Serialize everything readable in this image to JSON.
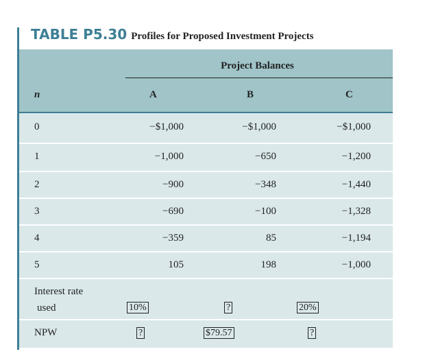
{
  "title": {
    "number": "TABLE P5.30",
    "description": "Profiles for Proposed Investment Projects"
  },
  "header": {
    "group": "Project Balances",
    "n": "n",
    "columns": [
      "A",
      "B",
      "C"
    ]
  },
  "rows": [
    {
      "n": "0",
      "a": "−$1,000",
      "b": "−$1,000",
      "c": "−$1,000"
    },
    {
      "n": "1",
      "a": "−1,000",
      "b": "−650",
      "c": "−1,200"
    },
    {
      "n": "2",
      "a": "−900",
      "b": "−348",
      "c": "−1,440"
    },
    {
      "n": "3",
      "a": "−690",
      "b": "−100",
      "c": "−1,328"
    },
    {
      "n": "4",
      "a": "−359",
      "b": "85",
      "c": "−1,194"
    },
    {
      "n": "5",
      "a": "105",
      "b": "198",
      "c": "−1,000"
    }
  ],
  "interest": {
    "label1": "Interest rate",
    "label2": "used",
    "a": "10%",
    "b": "?",
    "c": "20%"
  },
  "npw": {
    "label": "NPW",
    "a": "?",
    "b": "$79.57",
    "c": "?"
  },
  "colors": {
    "accent": "#3d7f95",
    "header_bg": "#a0c4c8",
    "row_bg": "#dae8ea"
  }
}
